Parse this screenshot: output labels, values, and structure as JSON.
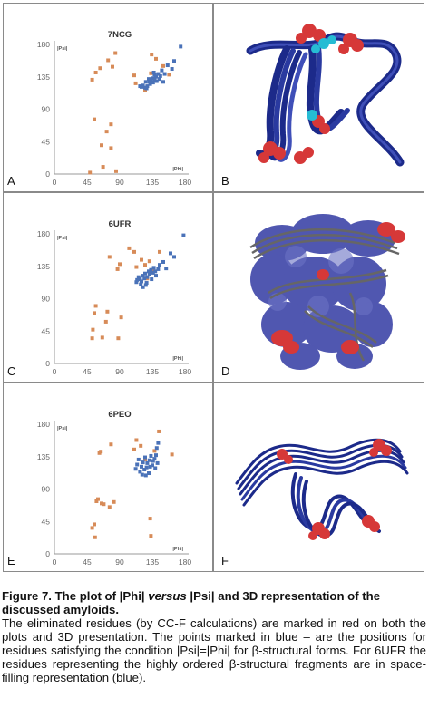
{
  "panels": [
    {
      "letter": "A",
      "mol_letter": "B"
    },
    {
      "letter": "C",
      "mol_letter": "D"
    },
    {
      "letter": "E",
      "mol_letter": "F"
    }
  ],
  "colors": {
    "blue_points": "#4a72b8",
    "orange_points": "#d78b58",
    "axis": "#999999",
    "ribbon_dark": "#1c2a8a",
    "ribbon_light": "#3f4fb8",
    "red_atoms": "#d63838",
    "cyan_atoms": "#26bcd4",
    "surface_blue": "#5057b0",
    "ribbon_gray": "#666666"
  },
  "chart_data": [
    {
      "type": "scatter",
      "title": "7NCG",
      "xlabel": "|Phi|",
      "ylabel": "|Psi|",
      "xlim": [
        0,
        180
      ],
      "ylim": [
        0,
        180
      ],
      "xticks": [
        0,
        45,
        90,
        135,
        180
      ],
      "yticks": [
        0,
        45,
        90,
        135,
        180
      ],
      "grid": false,
      "series": [
        {
          "color": "orange",
          "points": [
            [
              52,
              131
            ],
            [
              55,
              76
            ],
            [
              57,
              141
            ],
            [
              63,
              147
            ],
            [
              65,
              40
            ],
            [
              67,
              10
            ],
            [
              72,
              59
            ],
            [
              74,
              158
            ],
            [
              78,
              69
            ],
            [
              80,
              149
            ],
            [
              84,
              168
            ],
            [
              85,
              4
            ],
            [
              49,
              2
            ],
            [
              78,
              36
            ],
            [
              134,
              166
            ],
            [
              133,
              140
            ],
            [
              140,
              160
            ],
            [
              150,
              150
            ],
            [
              158,
              138
            ],
            [
              110,
              137
            ],
            [
              112,
              126
            ],
            [
              125,
              117
            ]
          ]
        },
        {
          "color": "blue",
          "points": [
            [
              118,
              122
            ],
            [
              120,
              121
            ],
            [
              122,
              123
            ],
            [
              125,
              120
            ],
            [
              126,
              128
            ],
            [
              128,
              122
            ],
            [
              130,
              132
            ],
            [
              132,
              125
            ],
            [
              133,
              130
            ],
            [
              135,
              133
            ],
            [
              136,
              127
            ],
            [
              138,
              138
            ],
            [
              138,
              131
            ],
            [
              140,
              135
            ],
            [
              141,
              129
            ],
            [
              143,
              139
            ],
            [
              145,
              132
            ],
            [
              146,
              136
            ],
            [
              148,
              144
            ],
            [
              150,
              128
            ],
            [
              152,
              139
            ],
            [
              156,
              151
            ],
            [
              162,
              146
            ],
            [
              165,
              157
            ],
            [
              127,
              119
            ],
            [
              131,
              128
            ],
            [
              137,
              141
            ],
            [
              174,
              177
            ]
          ]
        }
      ]
    },
    {
      "type": "scatter",
      "title": "6UFR",
      "xlabel": "|Phi|",
      "ylabel": "|Psi|",
      "xlim": [
        0,
        180
      ],
      "ylim": [
        0,
        180
      ],
      "xticks": [
        0,
        45,
        90,
        135,
        180
      ],
      "yticks": [
        0,
        45,
        90,
        135,
        180
      ],
      "grid": false,
      "series": [
        {
          "color": "orange",
          "points": [
            [
              52,
              35
            ],
            [
              53,
              47
            ],
            [
              55,
              70
            ],
            [
              57,
              80
            ],
            [
              66,
              36
            ],
            [
              71,
              58
            ],
            [
              73,
              72
            ],
            [
              76,
              148
            ],
            [
              87,
              131
            ],
            [
              90,
              138
            ],
            [
              92,
              64
            ],
            [
              103,
              160
            ],
            [
              110,
              155
            ],
            [
              113,
              134
            ],
            [
              120,
              144
            ],
            [
              125,
              137
            ],
            [
              131,
              142
            ],
            [
              136,
              130
            ],
            [
              145,
              155
            ],
            [
              88,
              35
            ],
            [
              128,
              118
            ]
          ]
        },
        {
          "color": "blue",
          "points": [
            [
              113,
              113
            ],
            [
              114,
              116
            ],
            [
              116,
              120
            ],
            [
              118,
              117
            ],
            [
              120,
              114
            ],
            [
              122,
              122
            ],
            [
              124,
              118
            ],
            [
              125,
              125
            ],
            [
              127,
              112
            ],
            [
              128,
              120
            ],
            [
              130,
              128
            ],
            [
              131,
              124
            ],
            [
              133,
              130
            ],
            [
              134,
              117
            ],
            [
              136,
              126
            ],
            [
              137,
              133
            ],
            [
              139,
              128
            ],
            [
              140,
              122
            ],
            [
              143,
              131
            ],
            [
              145,
              137
            ],
            [
              150,
              141
            ],
            [
              154,
              132
            ],
            [
              160,
              153
            ],
            [
              165,
              148
            ],
            [
              178,
              178
            ],
            [
              119,
              110
            ],
            [
              122,
              106
            ],
            [
              126,
              109
            ]
          ]
        }
      ]
    },
    {
      "type": "scatter",
      "title": "6PEO",
      "xlabel": "|Phi|",
      "ylabel": "|Psi|",
      "xlim": [
        0,
        180
      ],
      "ylim": [
        0,
        180
      ],
      "xticks": [
        0,
        45,
        90,
        135,
        180
      ],
      "yticks": [
        0,
        45,
        90,
        135,
        180
      ],
      "grid": false,
      "series": [
        {
          "color": "orange",
          "points": [
            [
              52,
              36
            ],
            [
              55,
              41
            ],
            [
              56,
              23
            ],
            [
              58,
              73
            ],
            [
              60,
              76
            ],
            [
              62,
              140
            ],
            [
              64,
              142
            ],
            [
              65,
              70
            ],
            [
              68,
              69
            ],
            [
              76,
              65
            ],
            [
              78,
              152
            ],
            [
              82,
              72
            ],
            [
              110,
              145
            ],
            [
              113,
              158
            ],
            [
              119,
              150
            ],
            [
              125,
              131
            ],
            [
              132,
              49
            ],
            [
              133,
              25
            ],
            [
              138,
              143
            ],
            [
              144,
              170
            ],
            [
              162,
              138
            ]
          ]
        },
        {
          "color": "blue",
          "points": [
            [
              112,
              118
            ],
            [
              114,
              124
            ],
            [
              116,
              131
            ],
            [
              118,
              114
            ],
            [
              120,
              121
            ],
            [
              122,
              127
            ],
            [
              124,
              117
            ],
            [
              125,
              134
            ],
            [
              127,
              120
            ],
            [
              128,
              126
            ],
            [
              130,
              112
            ],
            [
              131,
              130
            ],
            [
              132,
              121
            ],
            [
              133,
              136
            ],
            [
              135,
              123
            ],
            [
              136,
              129
            ],
            [
              138,
              132
            ],
            [
              139,
              119
            ],
            [
              140,
              137
            ],
            [
              141,
              147
            ],
            [
              142,
              126
            ],
            [
              143,
              154
            ],
            [
              121,
              110
            ],
            [
              126,
              109
            ]
          ]
        }
      ]
    }
  ],
  "caption": {
    "title_pre": "Figure 7. The plot of |Phi| ",
    "title_italic": "versus",
    "title_post": " |Psi| and 3D representation of the discussed amyloids.",
    "body": "The eliminated residues (by CC-F calculations) are marked in red on both the plots and 3D presentation. The points marked in blue – are the positions for residues satisfying the condition |Psi|=|Phi| for β-structural forms. For 6UFR the residues representing the highly ordered β-structural fragments are in space-filling representation (blue)."
  }
}
